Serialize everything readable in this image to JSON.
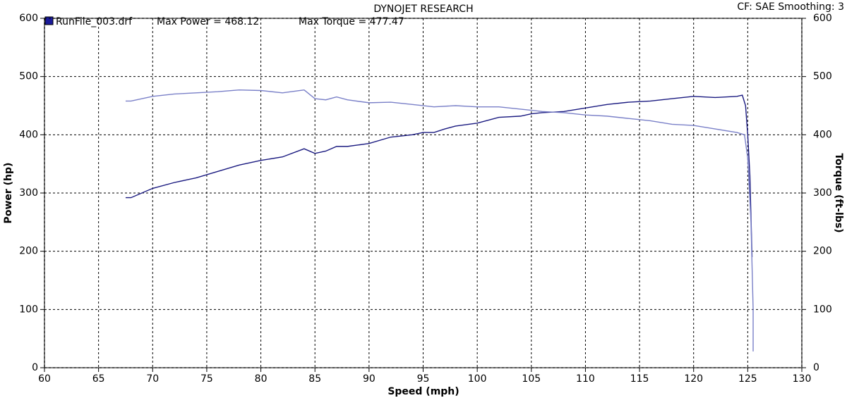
{
  "chart_data": {
    "type": "line",
    "title": "DYNOJET RESEARCH",
    "settings_label": "CF: SAE  Smoothing: 3",
    "legend_label": "RunFile_003.drf",
    "max_power_label": "Max Power = 468.12",
    "max_torque_label": "Max Torque = 477.47",
    "x_label": "Speed (mph)",
    "y_label": "Power (hp)",
    "y2_label": "Torque (ft-lbs)",
    "xlim": [
      60,
      130
    ],
    "xticks": [
      60,
      65,
      70,
      75,
      80,
      85,
      90,
      95,
      100,
      105,
      110,
      115,
      120,
      125,
      130
    ],
    "ylim": [
      0,
      600
    ],
    "yticks": [
      0,
      100,
      200,
      300,
      400,
      500,
      600
    ],
    "y2lim": [
      0,
      600
    ],
    "y2ticks": [
      0,
      100,
      200,
      300,
      400,
      500,
      600
    ],
    "grid": true,
    "series": [
      {
        "name": "RunFile_003.drf",
        "color": "#1a1a80",
        "x": [
          67.5,
          68,
          70,
          72,
          74,
          76,
          78,
          80,
          82,
          84,
          85,
          86,
          87,
          88,
          90,
          92,
          94,
          95,
          96,
          97,
          98,
          100,
          102,
          104,
          105,
          106,
          108,
          110,
          112,
          114,
          116,
          118,
          120,
          122,
          124,
          124.5,
          124.8,
          125,
          125.2,
          125.3,
          125.4
        ],
        "values": [
          292,
          292,
          308,
          318,
          326,
          337,
          348,
          356,
          362,
          376,
          368,
          372,
          380,
          380,
          385,
          396,
          400,
          404,
          404,
          410,
          415,
          420,
          430,
          432,
          436,
          438,
          440,
          446,
          452,
          456,
          458,
          462,
          466,
          464,
          466,
          468,
          450,
          400,
          330,
          260,
          190
        ]
      },
      {
        "color": "#7a80c8",
        "axis": "y2",
        "x": [
          67.5,
          68,
          70,
          72,
          74,
          76,
          78,
          80,
          82,
          84,
          85,
          86,
          87,
          88,
          90,
          92,
          94,
          96,
          98,
          100,
          102,
          104,
          106,
          108,
          110,
          112,
          114,
          116,
          118,
          120,
          122,
          124,
          124.7,
          125,
          125.3,
          125.5,
          125.5
        ],
        "values": [
          458,
          458,
          466,
          470,
          472,
          474,
          477,
          476,
          472,
          477,
          462,
          460,
          465,
          460,
          455,
          456,
          452,
          448,
          450,
          448,
          448,
          444,
          440,
          438,
          434,
          432,
          428,
          424,
          418,
          416,
          410,
          404,
          400,
          360,
          250,
          100,
          28
        ]
      }
    ]
  }
}
